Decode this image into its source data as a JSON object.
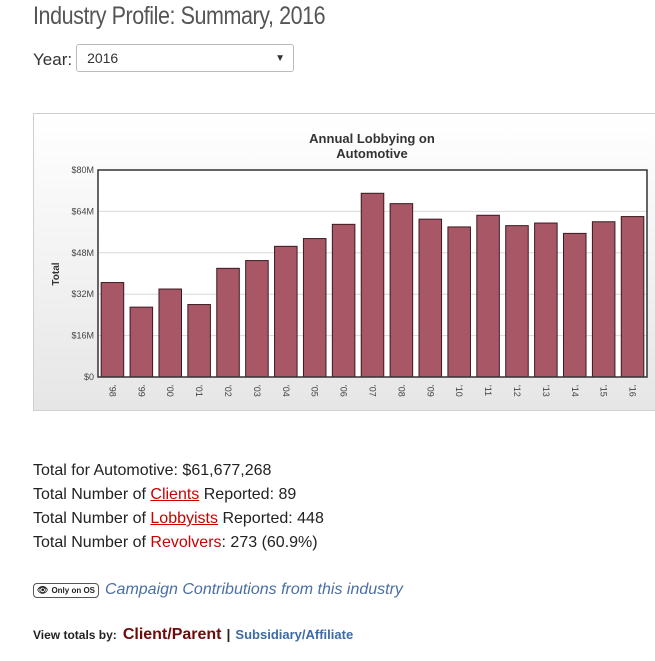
{
  "page": {
    "title": "Industry Profile: Summary, 2016"
  },
  "year_filter": {
    "label": "Year:",
    "selected": "2016",
    "arrow_icon": "chevron-down-icon"
  },
  "chart_data": {
    "type": "bar",
    "title_line1": "Annual Lobbying on",
    "title_line2": "Automotive",
    "ylabel": "Total",
    "categories": [
      "'98",
      "'99",
      "'00",
      "'01",
      "'02",
      "'03",
      "'04",
      "'05",
      "'06",
      "'07",
      "'08",
      "'09",
      "'10",
      "'11",
      "'12",
      "'13",
      "'14",
      "'15",
      "'16"
    ],
    "values": [
      36.5,
      27,
      34,
      28,
      42,
      45,
      50.5,
      53.5,
      59,
      71,
      67,
      61,
      58,
      62.5,
      58.5,
      59.5,
      55.5,
      60,
      62
    ],
    "ylim": [
      0,
      80
    ],
    "yticks": [
      "$0",
      "$16M",
      "$32M",
      "$48M",
      "$64M",
      "$80M"
    ],
    "bar_color": "#a85767",
    "grid": true
  },
  "totals": {
    "industry_total_prefix": "Total for Automotive:",
    "industry_total_value": "$61,677,268",
    "clients_prefix": "Total Number of",
    "clients_link": "Clients",
    "clients_suffix": "Reported: 89",
    "lobbyists_prefix": "Total Number of",
    "lobbyists_link": "Lobbyists",
    "lobbyists_suffix": "Reported: 448",
    "revolvers_prefix": "Total Number of",
    "revolvers_link": "Revolvers",
    "revolvers_suffix": ": 273 (60.9%)"
  },
  "contributions": {
    "badge_text": "Only on OS",
    "badge_icon": "eye-icon",
    "link_text": "Campaign Contributions from this industry"
  },
  "view_totals": {
    "label": "View totals by:",
    "client_parent": "Client/Parent",
    "separator": "|",
    "subsidiary": "Subsidiary/Affiliate"
  }
}
